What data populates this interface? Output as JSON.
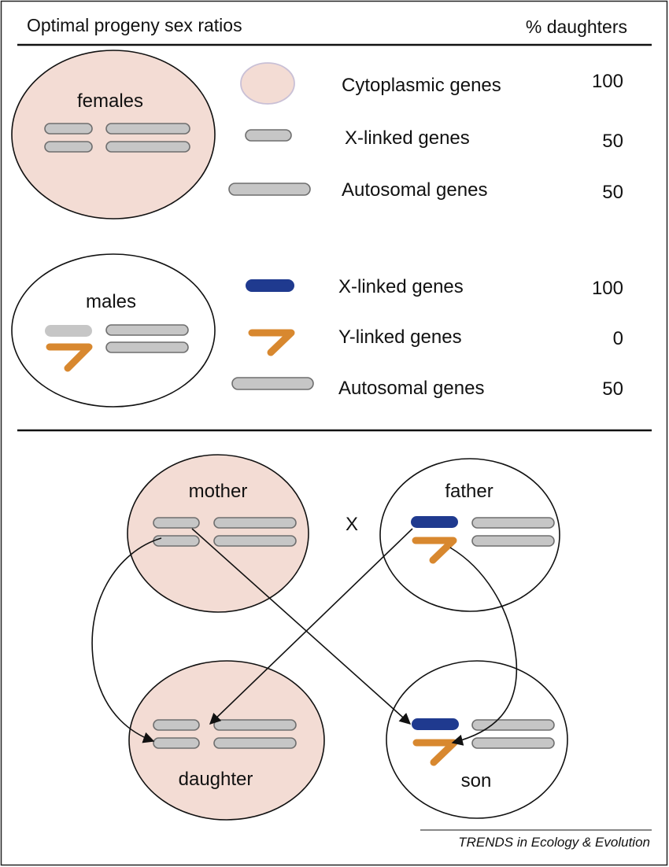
{
  "header": {
    "title": "Optimal progeny sex ratios",
    "column_label": "% daughters"
  },
  "colors": {
    "female_fill": "#f3dcd4",
    "x_chromosome": "#1f3a8f",
    "y_chromosome": "#d8882f",
    "autosome": "#c6c6c6"
  },
  "females": {
    "cell_label": "females",
    "rows": [
      {
        "icon": "cytoplasm-icon",
        "label": "Cytoplasmic genes",
        "value": "100"
      },
      {
        "icon": "x-chromosome-gray-icon",
        "label": "X-linked genes",
        "value": "50"
      },
      {
        "icon": "autosome-icon",
        "label": "Autosomal genes",
        "value": "50"
      }
    ]
  },
  "males": {
    "cell_label": "males",
    "rows": [
      {
        "icon": "x-chromosome-blue-icon",
        "label": "X-linked genes",
        "value": "100"
      },
      {
        "icon": "y-chromosome-icon",
        "label": "Y-linked genes",
        "value": "0"
      },
      {
        "icon": "autosome-icon",
        "label": "Autosomal genes",
        "value": "50"
      }
    ]
  },
  "cross": {
    "mother": "mother",
    "father": "father",
    "cross_symbol": "X",
    "daughter": "daughter",
    "son": "son"
  },
  "caption": "TRENDS in Ecology & Evolution"
}
